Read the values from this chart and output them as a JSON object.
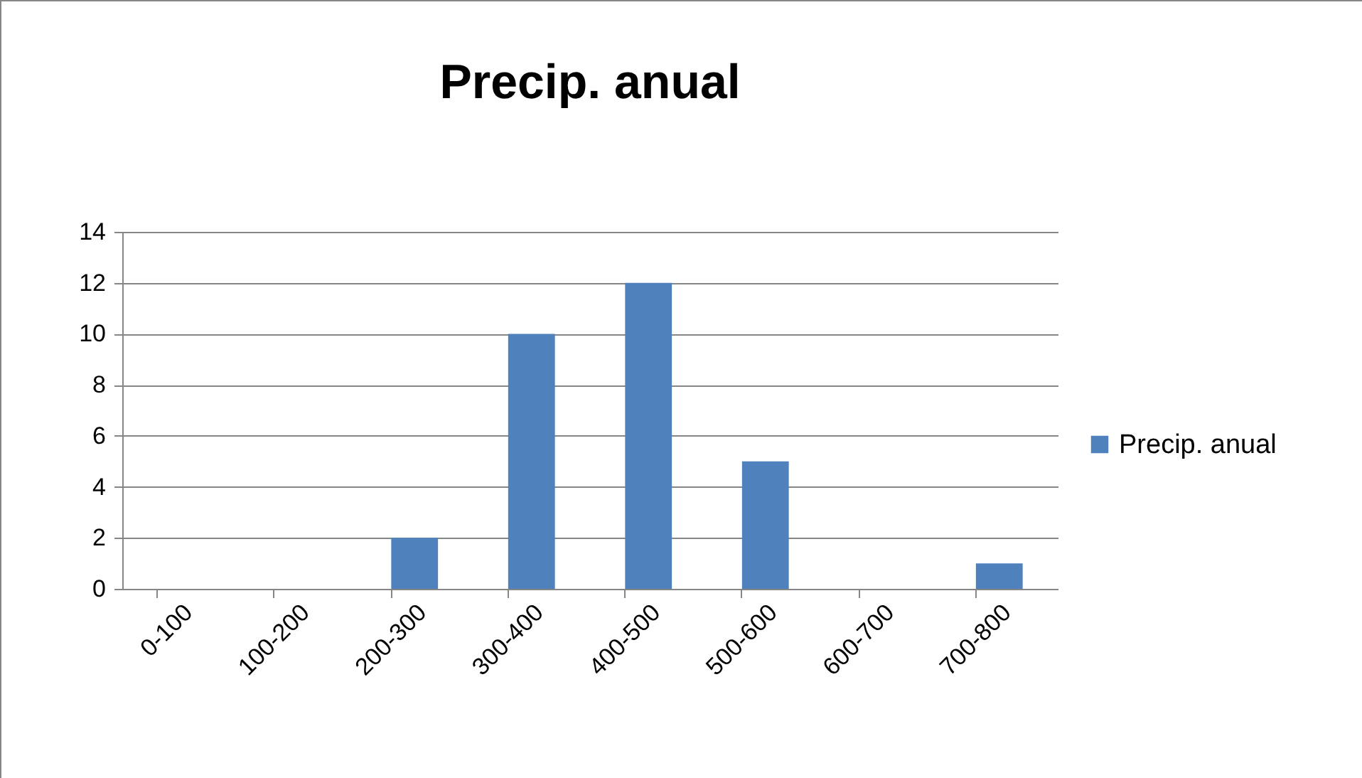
{
  "chart_data": {
    "type": "bar",
    "title": "Precip. anual",
    "categories": [
      "0-100",
      "100-200",
      "200-300",
      "300-400",
      "400-500",
      "500-600",
      "600-700",
      "700-800"
    ],
    "series": [
      {
        "name": "Precip. anual",
        "color": "#4f81bd",
        "values": [
          0,
          0,
          2,
          10,
          12,
          5,
          0,
          1
        ]
      }
    ],
    "ylim": [
      0,
      14
    ],
    "yticks": [
      0,
      2,
      4,
      6,
      8,
      10,
      12,
      14
    ],
    "grid": "y",
    "legend": "right"
  }
}
